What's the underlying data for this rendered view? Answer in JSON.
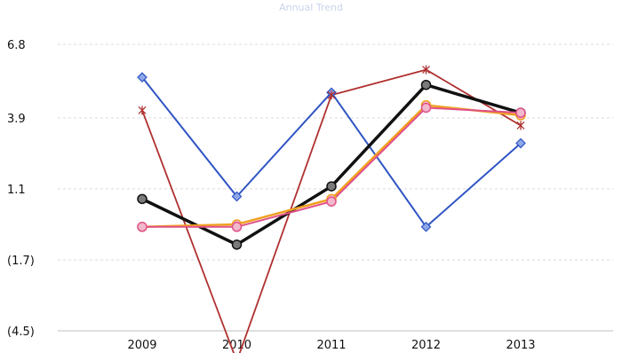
{
  "chart_data": {
    "type": "line",
    "title": "Annual Trend",
    "categories": [
      "2009",
      "2010",
      "2011",
      "2012",
      "2013"
    ],
    "y_tick_values": [
      6.8,
      3.9,
      1.1,
      -1.7,
      -4.5
    ],
    "y_tick_labels": [
      "6.8",
      "3.9",
      "1.1",
      "(1.7)",
      "(4.5)"
    ],
    "ylim": [
      -4.5,
      6.8
    ],
    "grid": "horizontal dashed",
    "legend": "none",
    "series": [
      {
        "values": [
          5.5,
          0.8,
          4.9,
          -0.4,
          2.9
        ],
        "color": "#2f54c4",
        "marker": "diamond",
        "width": 2
      },
      {
        "values": [
          4.2,
          -5.7,
          4.8,
          5.8,
          3.6
        ],
        "color": "#b03030",
        "marker": "star",
        "width": 1.8
      },
      {
        "values": [
          0.7,
          -1.1,
          1.2,
          5.2,
          4.1
        ],
        "color": "#111111",
        "marker": "circle",
        "width": 3.5
      },
      {
        "values": [
          -0.4,
          -0.3,
          0.7,
          4.4,
          4.0
        ],
        "color": "#f0a020",
        "marker": "circle",
        "width": 2.5
      },
      {
        "values": [
          -0.4,
          -0.4,
          0.6,
          4.3,
          4.1
        ],
        "color": "#e0508a",
        "marker": "circle",
        "width": 2
      }
    ]
  }
}
